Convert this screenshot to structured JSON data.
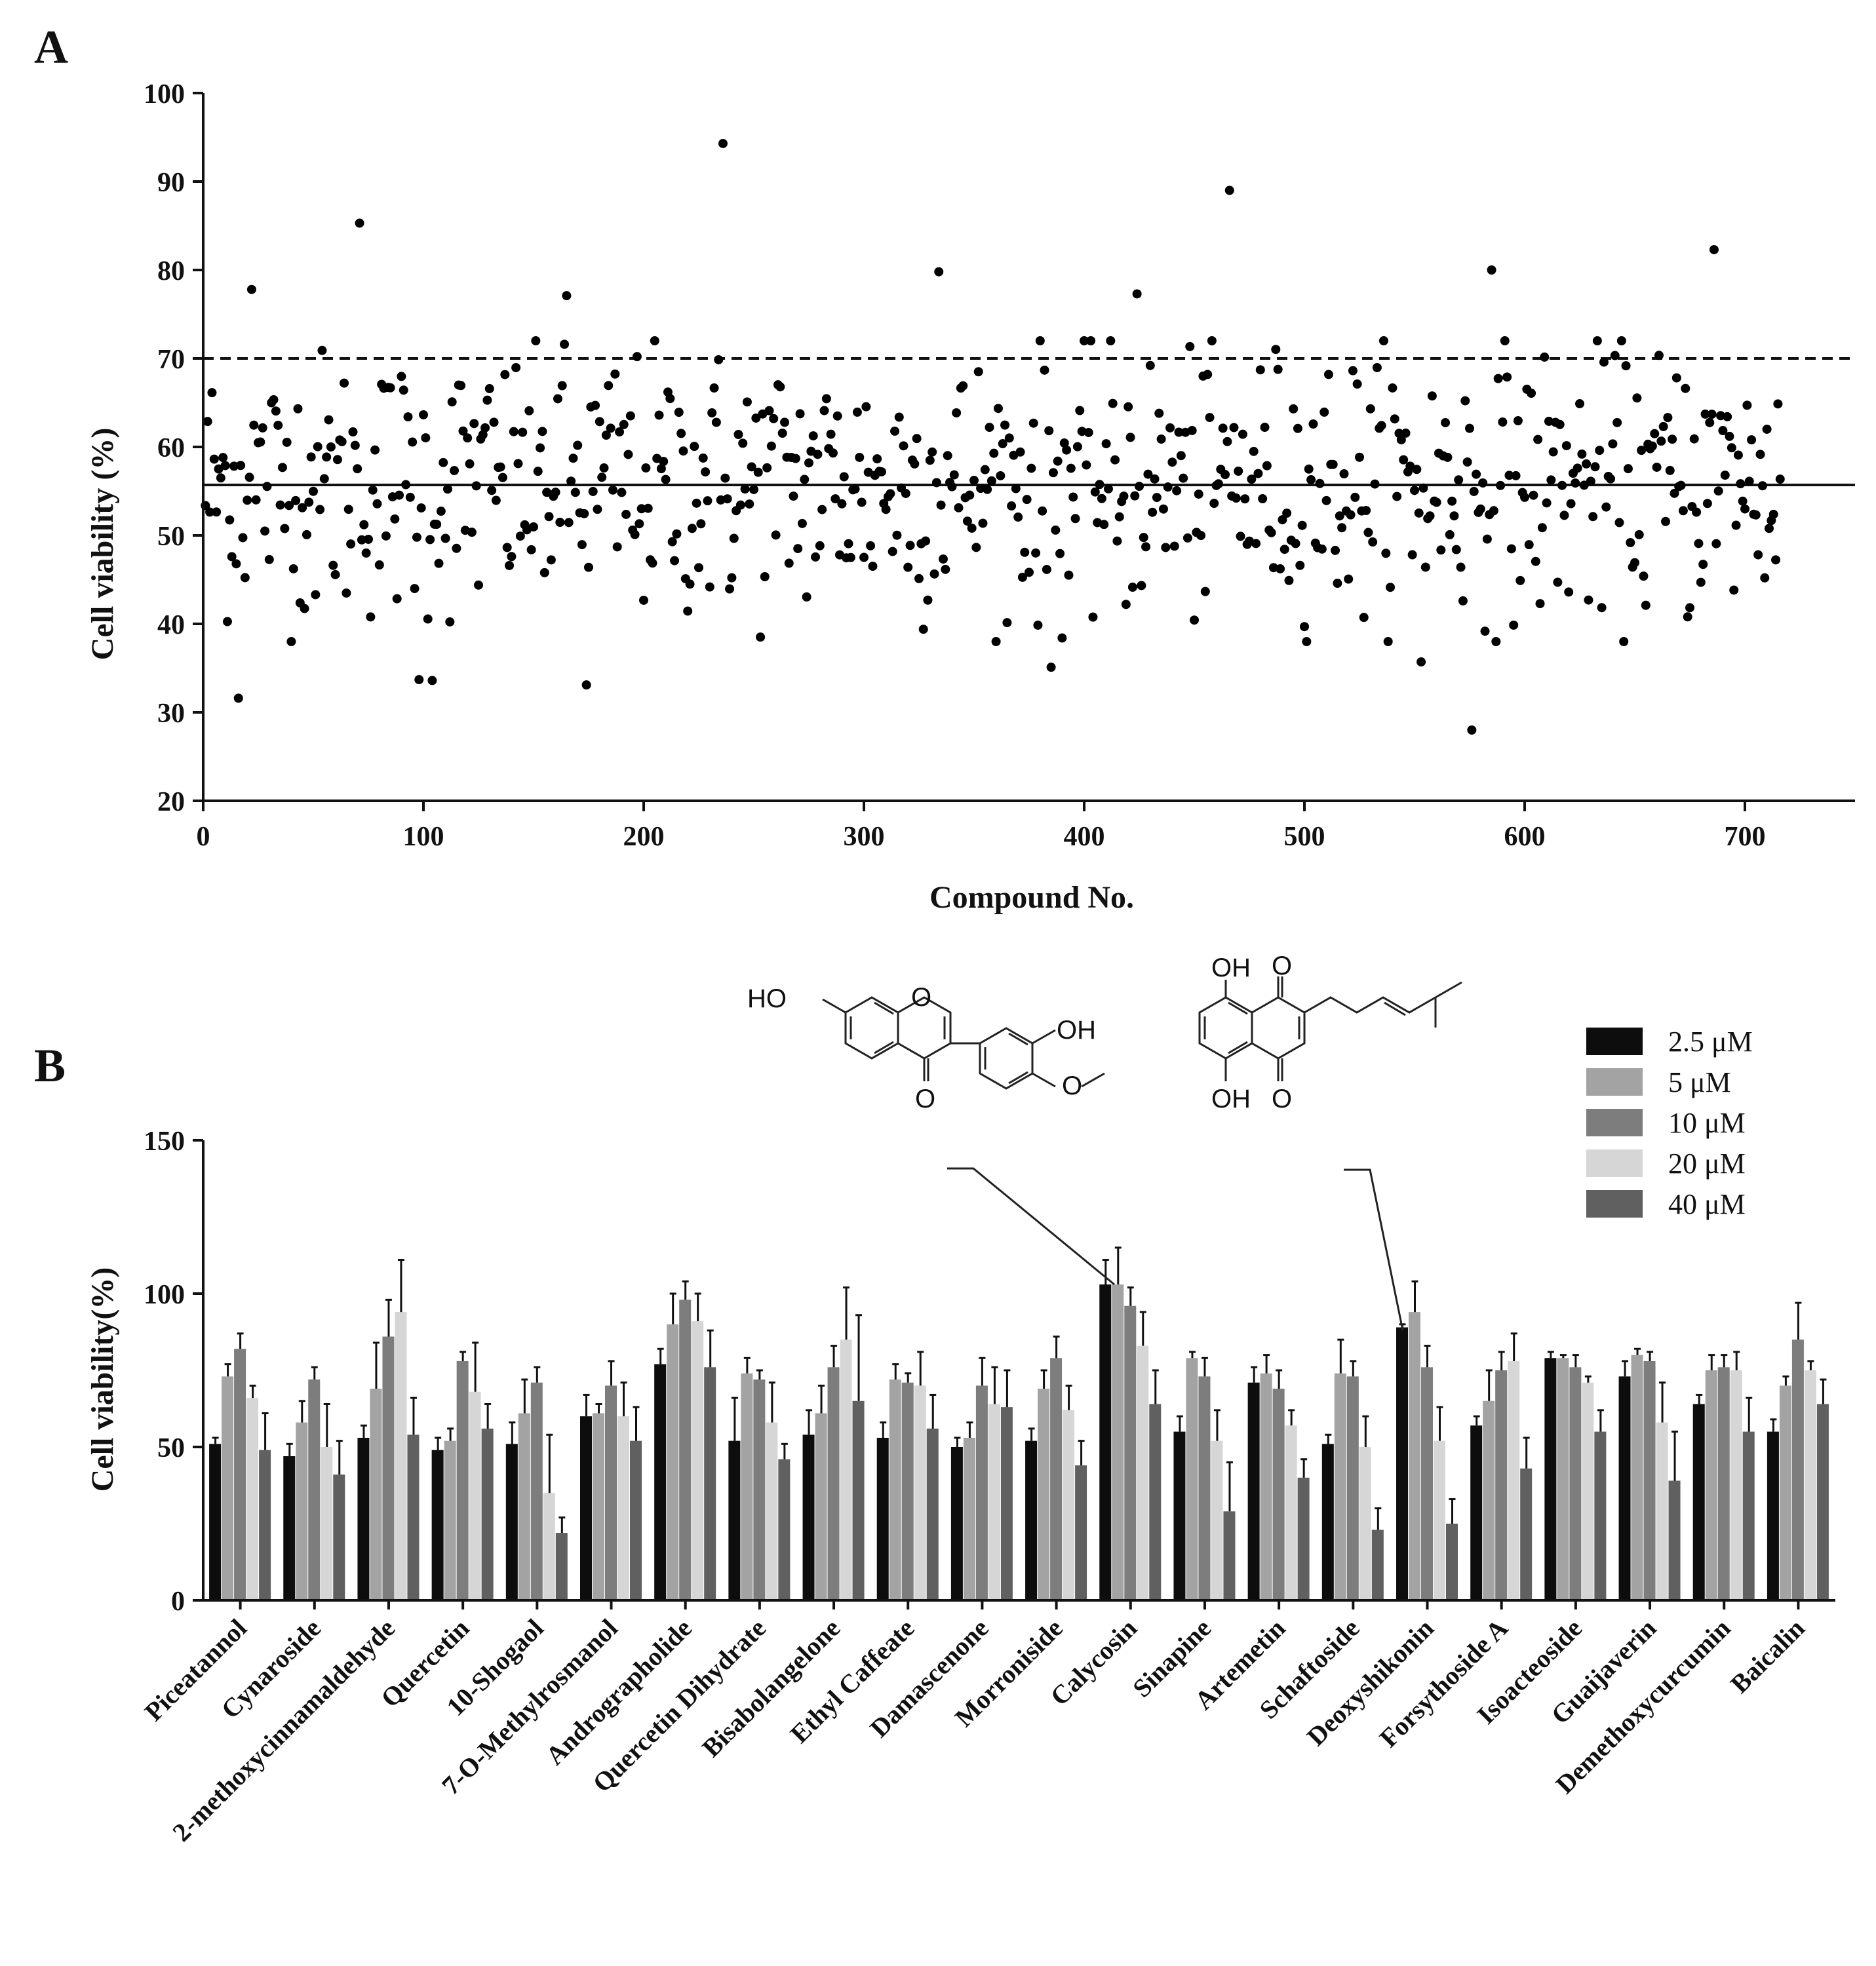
{
  "figure": {
    "panel_a_letter": "A",
    "panel_b_letter": "B"
  },
  "chart_data": [
    {
      "type": "scatter",
      "panel": "A",
      "xlabel": "Compound No.",
      "ylabel": "Cell viability (%)",
      "xlim": [
        0,
        750
      ],
      "ylim": [
        20,
        100
      ],
      "xticks": [
        0,
        100,
        200,
        300,
        400,
        500,
        600,
        700
      ],
      "yticks": [
        20,
        30,
        40,
        50,
        60,
        70,
        80,
        90,
        100
      ],
      "reference_lines": [
        {
          "name": "threshold",
          "y": 70,
          "style": "dashed"
        },
        {
          "name": "mean",
          "y": 55.7,
          "style": "solid"
        }
      ],
      "n_points": 716,
      "notable_points": [
        {
          "x": 236,
          "y": 94.3
        },
        {
          "x": 466,
          "y": 89.0
        },
        {
          "x": 71,
          "y": 85.3
        },
        {
          "x": 686,
          "y": 82.3
        },
        {
          "x": 585,
          "y": 80.0
        },
        {
          "x": 334,
          "y": 79.8
        },
        {
          "x": 22,
          "y": 77.8
        },
        {
          "x": 165,
          "y": 77.1
        },
        {
          "x": 424,
          "y": 77.3
        },
        {
          "x": 576,
          "y": 28.0
        },
        {
          "x": 16,
          "y": 31.6
        },
        {
          "x": 174,
          "y": 33.1
        },
        {
          "x": 98,
          "y": 33.7
        },
        {
          "x": 104,
          "y": 33.6
        },
        {
          "x": 385,
          "y": 35.1
        },
        {
          "x": 553,
          "y": 35.7
        }
      ],
      "generated_distribution": {
        "mean": 55.7,
        "sd": 7.5,
        "seed": 12345
      }
    },
    {
      "type": "bar",
      "panel": "B",
      "ylabel": "Cell viability(%)",
      "ylim": [
        0,
        150
      ],
      "yticks": [
        0,
        50,
        100,
        150
      ],
      "categories": [
        "Piceatannol",
        "Cynaroside",
        "2-methoxycinnamaldehyde",
        "Quercetin",
        "10-Shogaol",
        "7-O-Methylrosmanol",
        "Andrographolide",
        "Quercetin Dihydrate",
        "Bisabolangelone",
        "Ethyl Caffeate",
        "Damascenone",
        "Morroniside",
        "Calycosin",
        "Sinapine",
        "Artemetin",
        "Schaftoside",
        "Deoxyshikonin",
        "Forsythoside A",
        "Isoacteoside",
        "Guaijaverin",
        "Demethoxycurcumin",
        "Baicalin"
      ],
      "series": [
        {
          "name": "2.5 μM",
          "color": "#0d0d0d",
          "values": [
            51,
            47,
            53,
            49,
            51,
            60,
            77,
            52,
            54,
            53,
            50,
            52,
            103,
            55,
            71,
            51,
            89,
            57,
            79,
            73,
            64,
            55
          ],
          "errors": [
            2,
            4,
            4,
            4,
            7,
            7,
            5,
            14,
            8,
            5,
            3,
            4,
            8,
            5,
            5,
            3,
            1,
            3,
            2,
            5,
            3,
            4
          ]
        },
        {
          "name": "5 μM",
          "color": "#a3a3a3",
          "values": [
            73,
            58,
            69,
            52,
            61,
            61,
            90,
            74,
            61,
            72,
            53,
            69,
            103,
            79,
            74,
            74,
            94,
            65,
            79,
            80,
            75,
            70
          ],
          "errors": [
            4,
            7,
            15,
            4,
            11,
            3,
            10,
            5,
            9,
            5,
            5,
            6,
            12,
            2,
            6,
            11,
            10,
            10,
            1,
            2,
            5,
            3
          ]
        },
        {
          "name": "10 μM",
          "color": "#7d7d7d",
          "values": [
            82,
            72,
            86,
            78,
            71,
            70,
            98,
            72,
            76,
            71,
            70,
            79,
            96,
            73,
            69,
            73,
            76,
            75,
            76,
            78,
            76,
            85
          ],
          "errors": [
            5,
            4,
            12,
            3,
            5,
            8,
            6,
            3,
            7,
            3,
            9,
            7,
            6,
            6,
            6,
            5,
            7,
            6,
            4,
            3,
            4,
            12
          ]
        },
        {
          "name": "20 μM",
          "color": "#d6d6d6",
          "values": [
            66,
            50,
            94,
            68,
            35,
            60,
            91,
            58,
            85,
            70,
            64,
            62,
            83,
            52,
            57,
            50,
            52,
            78,
            71,
            58,
            75,
            75
          ],
          "errors": [
            4,
            14,
            17,
            16,
            19,
            11,
            9,
            13,
            17,
            11,
            12,
            8,
            11,
            10,
            5,
            10,
            11,
            9,
            2,
            13,
            6,
            3
          ]
        },
        {
          "name": "40 μM",
          "color": "#606060",
          "values": [
            49,
            41,
            54,
            56,
            22,
            52,
            76,
            46,
            65,
            56,
            63,
            44,
            64,
            29,
            40,
            23,
            25,
            43,
            55,
            39,
            55,
            64
          ],
          "errors": [
            12,
            11,
            12,
            8,
            5,
            11,
            12,
            5,
            28,
            11,
            12,
            8,
            11,
            16,
            6,
            7,
            8,
            10,
            7,
            16,
            11,
            8
          ]
        }
      ],
      "legend": {
        "placement": "top-right"
      },
      "annotations": [
        {
          "compound": "Calycosin",
          "structure_labels": [
            "HO",
            "O",
            "OH",
            "O"
          ]
        },
        {
          "compound": "Deoxyshikonin",
          "structure_labels": [
            "OH",
            "O",
            "OH",
            "O"
          ]
        }
      ]
    }
  ]
}
